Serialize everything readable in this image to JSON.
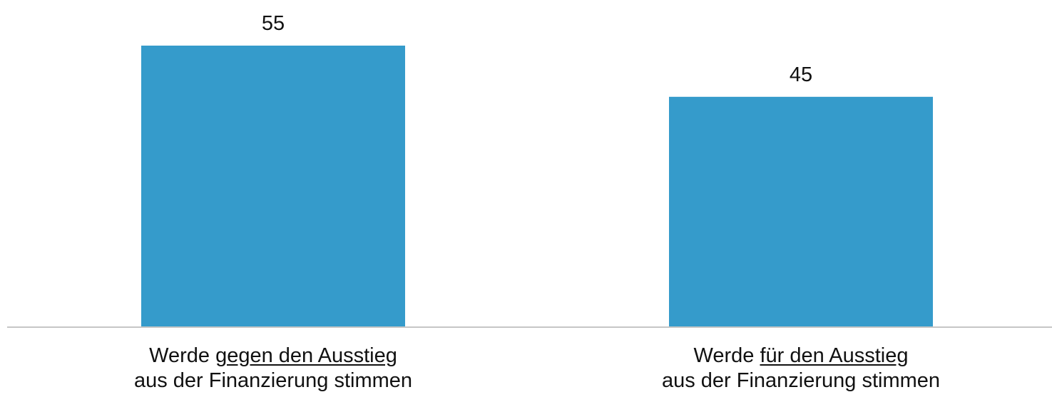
{
  "chart_data": {
    "type": "bar",
    "categories": [
      {
        "prefix": "Werde ",
        "emphasis": "gegen den Ausstieg",
        "line2": "aus der Finanzierung stimmen"
      },
      {
        "prefix": "Werde ",
        "emphasis": "für den Ausstieg",
        "line2": "aus der Finanzierung stimmen"
      }
    ],
    "values": [
      55,
      45
    ],
    "value_labels": [
      "55",
      "45"
    ],
    "bar_color": "#359BCB",
    "axis_color": "#C6C6C6",
    "ylim": [
      0,
      55
    ],
    "grid": false,
    "legend": "none"
  }
}
